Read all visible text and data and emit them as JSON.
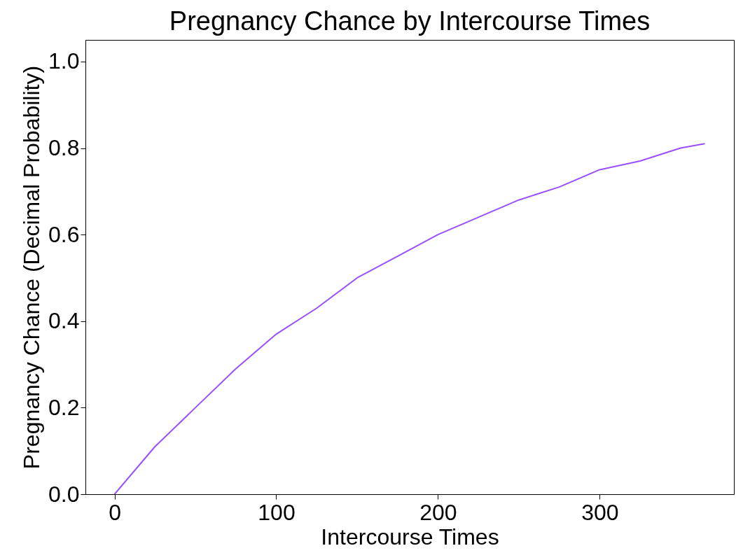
{
  "chart_data": {
    "type": "line",
    "title": "Pregnancy Chance by Intercourse Times",
    "xlabel": "Intercourse Times",
    "ylabel": "Pregnancy Chance (Decimal Probability)",
    "x": [
      0,
      25,
      50,
      75,
      100,
      125,
      150,
      175,
      200,
      225,
      250,
      275,
      300,
      325,
      350,
      365
    ],
    "series": [
      {
        "color": "#9a50ff",
        "values": [
          0,
          0.11,
          0.2,
          0.29,
          0.37,
          0.43,
          0.5,
          0.55,
          0.6,
          0.64,
          0.68,
          0.71,
          0.75,
          0.77,
          0.8,
          0.81
        ]
      }
    ],
    "xlim": [
      -18,
      383
    ],
    "ylim": [
      0,
      1.05
    ],
    "xticks": [
      0,
      100,
      200,
      300
    ],
    "yticks": [
      {
        "value": 0,
        "label": "0.0"
      },
      {
        "value": 0.2,
        "label": "0.2"
      },
      {
        "value": 0.4,
        "label": "0.4"
      },
      {
        "value": 0.6,
        "label": "0.6"
      },
      {
        "value": 0.8,
        "label": "0.8"
      },
      {
        "value": 1,
        "label": "1.0"
      }
    ],
    "grid": false,
    "legend": false,
    "marker": "none",
    "line_style": "solid"
  }
}
